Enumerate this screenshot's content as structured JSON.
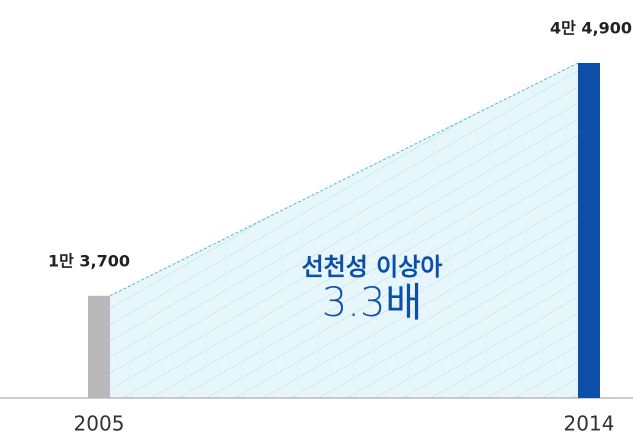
{
  "chart_data": {
    "type": "bar",
    "categories": [
      "2005",
      "2014"
    ],
    "values": [
      13700,
      44900
    ],
    "value_labels": [
      "1만 3,700",
      "4만 4,900"
    ],
    "colors": [
      "#b9b9bb",
      "#0d4ea6"
    ],
    "annotation": {
      "title": "선천성 이상아",
      "text": "3.3배"
    }
  }
}
